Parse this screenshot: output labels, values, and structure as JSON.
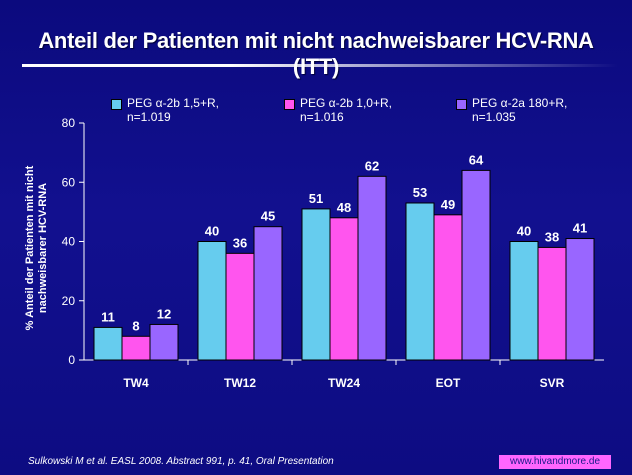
{
  "page": {
    "title": "Anteil der Patienten mit nicht nachweisbarer HCV-RNA (ITT)",
    "footer": "Sulkowski M et al. EASL 2008. Abstract 991, p. 41, Oral Presentation",
    "badge": "www.hivandmore.de"
  },
  "chart_data": {
    "type": "bar",
    "title": "",
    "ylabel_line1": "% Anteil der Patienten mit nicht",
    "ylabel_line2": "nachweisbarer  HCV-RNA",
    "ylim": [
      0,
      80
    ],
    "yticks": [
      0,
      20,
      40,
      60,
      80
    ],
    "grid": false,
    "legend_position": "top",
    "categories": [
      "TW4",
      "TW12",
      "TW24",
      "EOT",
      "SVR"
    ],
    "series": [
      {
        "name_line1": "PEG α-2b 1,5+R,",
        "name_line2": "n=1.019",
        "color": "#66ccee",
        "values": [
          11,
          40,
          51,
          53,
          40
        ]
      },
      {
        "name_line1": "PEG α-2b 1,0+R,",
        "name_line2": "n=1.016",
        "color": "#ff55ee",
        "values": [
          8,
          36,
          48,
          49,
          38
        ]
      },
      {
        "name_line1": "PEG α-2a 180+R,",
        "name_line2": "n=1.035",
        "color": "#9966ff",
        "values": [
          12,
          45,
          62,
          64,
          41
        ]
      }
    ]
  }
}
